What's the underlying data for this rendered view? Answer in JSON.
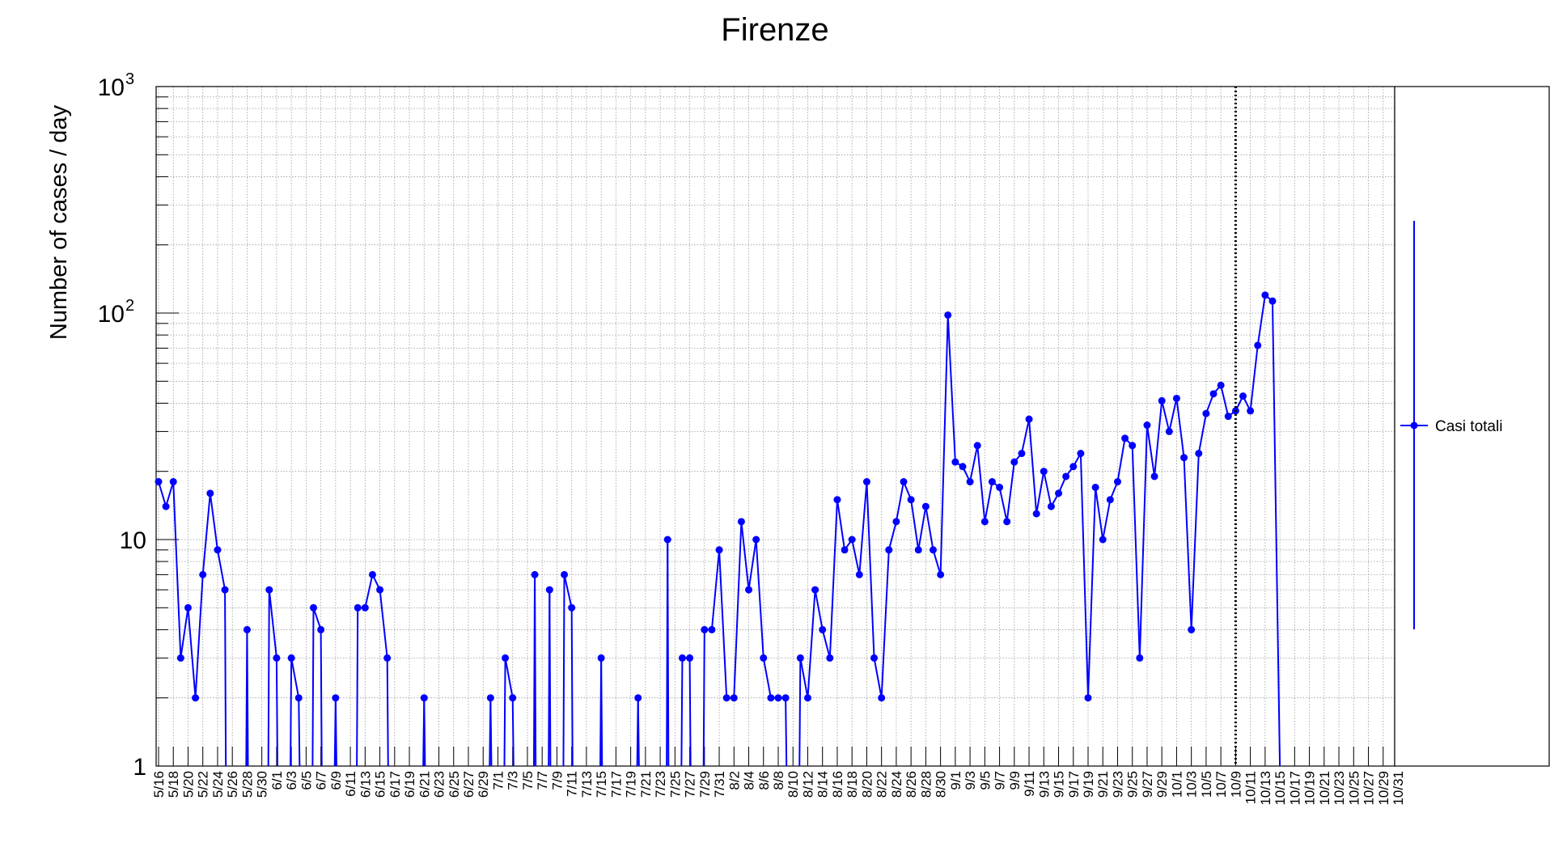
{
  "chart_data": {
    "type": "line",
    "title": "Firenze",
    "xlabel": "",
    "ylabel": "Number of cases / day",
    "y_scale": "log",
    "ylim": [
      1,
      1000
    ],
    "y_ticks": [
      {
        "value": 1,
        "base": "1",
        "exp": ""
      },
      {
        "value": 10,
        "base": "10",
        "exp": ""
      },
      {
        "value": 100,
        "base": "10",
        "exp": "2"
      },
      {
        "value": 1000,
        "base": "10",
        "exp": "3"
      }
    ],
    "x_range": [
      "5/16",
      "10/31"
    ],
    "x_tick_labels": [
      "5/16",
      "5/18",
      "5/20",
      "5/22",
      "5/24",
      "5/26",
      "5/28",
      "5/30",
      "6/1",
      "6/3",
      "6/5",
      "6/7",
      "6/9",
      "6/11",
      "6/13",
      "6/15",
      "6/17",
      "6/19",
      "6/21",
      "6/23",
      "6/25",
      "6/27",
      "6/29",
      "7/1",
      "7/3",
      "7/5",
      "7/7",
      "7/9",
      "7/11",
      "7/13",
      "7/15",
      "7/17",
      "7/19",
      "7/21",
      "7/23",
      "7/25",
      "7/27",
      "7/29",
      "7/31",
      "8/2",
      "8/4",
      "8/6",
      "8/8",
      "8/10",
      "8/12",
      "8/14",
      "8/16",
      "8/18",
      "8/20",
      "8/22",
      "8/24",
      "8/26",
      "8/28",
      "8/30",
      "9/1",
      "9/3",
      "9/5",
      "9/7",
      "9/9",
      "9/11",
      "9/13",
      "9/15",
      "9/17",
      "9/19",
      "9/21",
      "9/23",
      "9/25",
      "9/27",
      "9/29",
      "10/1",
      "10/3",
      "10/5",
      "10/7",
      "10/9",
      "10/11",
      "10/13",
      "10/15",
      "10/17",
      "10/19",
      "10/21",
      "10/23",
      "10/25",
      "10/27",
      "10/29",
      "10/31"
    ],
    "grid": true,
    "legend_position": "right",
    "series": [
      {
        "name": "Casi totali",
        "color": "#0000ff",
        "values": [
          18,
          14,
          18,
          3,
          5,
          2,
          7,
          16,
          9,
          6,
          0,
          0,
          4,
          0,
          0,
          6,
          3,
          0,
          3,
          2,
          0,
          5,
          4,
          0,
          2,
          0,
          0,
          5,
          5,
          7,
          6,
          3,
          0,
          0,
          0,
          0,
          2,
          0,
          0,
          0,
          0,
          0,
          0,
          0,
          0,
          2,
          0,
          3,
          2,
          0,
          0,
          7,
          0,
          6,
          0,
          7,
          5,
          0,
          0,
          0,
          3,
          0,
          0,
          0,
          0,
          2,
          0,
          0,
          0,
          10,
          0,
          3,
          3,
          0,
          4,
          4,
          9,
          2,
          2,
          12,
          6,
          10,
          3,
          2,
          2,
          2,
          0,
          3,
          2,
          6,
          4,
          3,
          15,
          9,
          10,
          7,
          18,
          3,
          2,
          9,
          12,
          18,
          15,
          9,
          14,
          9,
          7,
          98,
          22,
          21,
          18,
          26,
          12,
          18,
          17,
          12,
          22,
          24,
          34,
          13,
          20,
          14,
          16,
          19,
          21,
          24,
          2,
          17,
          10,
          15,
          18,
          28,
          26,
          3,
          32,
          19,
          41,
          30,
          42,
          23,
          4,
          24,
          36,
          44,
          48,
          35,
          37,
          43,
          37,
          72,
          120,
          113,
          1
        ]
      }
    ],
    "reference_line": {
      "date": "10/9",
      "style": "dotted",
      "color": "#000000"
    }
  }
}
